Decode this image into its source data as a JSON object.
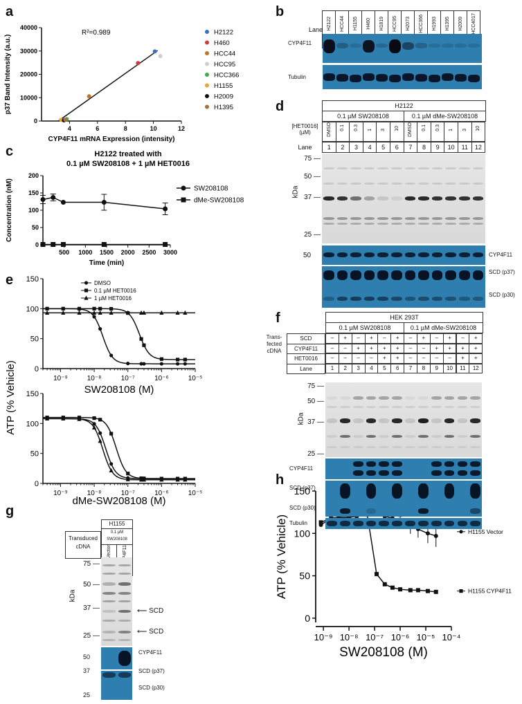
{
  "panel_letters": [
    "a",
    "b",
    "c",
    "d",
    "e",
    "f",
    "g",
    "h"
  ],
  "chart_data": [
    {
      "panel": "a",
      "type": "scatter",
      "xlabel": "CYP4F11 mRNA Expression (intensity)",
      "ylabel": "p37 Band Intensity (a.u.)",
      "annotation": "R²=0.989",
      "xlim": [
        2,
        12
      ],
      "ylim": [
        0,
        40000
      ],
      "xticks": [
        "4",
        "6",
        "8",
        "10",
        "12"
      ],
      "yticks": [
        "0",
        "10000",
        "20000",
        "30000",
        "40000"
      ],
      "points": [
        {
          "name": "H2122",
          "x": 10.1,
          "y": 29800,
          "color": "#3a6fc4"
        },
        {
          "name": "H460",
          "x": 8.9,
          "y": 24800,
          "color": "#d03a3a"
        },
        {
          "name": "HCC44",
          "x": 5.4,
          "y": 10600,
          "color": "#b8782e"
        },
        {
          "name": "HCC95",
          "x": 10.5,
          "y": 27800,
          "color": "#cfcfcf"
        },
        {
          "name": "HCC366",
          "x": 3.8,
          "y": 800,
          "color": "#3fae49"
        },
        {
          "name": "H1155",
          "x": 3.4,
          "y": 500,
          "color": "#e5a83a"
        },
        {
          "name": "H2009",
          "x": 3.6,
          "y": 300,
          "color": "#111111"
        },
        {
          "name": "H1395",
          "x": 3.7,
          "y": 600,
          "color": "#a0743a"
        }
      ],
      "fit_line": [
        [
          3.2,
          0
        ],
        [
          10.3,
          30200
        ]
      ],
      "legend_position": "right"
    },
    {
      "panel": "c",
      "type": "line",
      "title": "H2122 treated with\n0.1 µM SW208108 + 1 µM HET0016",
      "xlabel": "Time (min)",
      "ylabel": "Concentration (nM)",
      "xlim": [
        0,
        3000
      ],
      "ylim": [
        0,
        200
      ],
      "xticks": [
        "500",
        "1000",
        "1500",
        "2000",
        "2500",
        "3000"
      ],
      "yticks": [
        "0",
        "50",
        "100",
        "150",
        "200"
      ],
      "series": [
        {
          "name": "SW208108",
          "marker": "circle",
          "x": [
            0,
            240,
            480,
            1440,
            2880
          ],
          "y": [
            131,
            137,
            123,
            123,
            104
          ],
          "err": [
            12,
            10,
            0,
            23,
            17
          ]
        },
        {
          "name": "dMe-SW208108",
          "marker": "square",
          "x": [
            0,
            240,
            480,
            1440,
            2880
          ],
          "y": [
            1,
            1,
            1,
            1,
            1
          ]
        }
      ],
      "legend_position": "right"
    },
    {
      "panel": "e-top",
      "type": "line",
      "xlabel": "SW208108 (M)",
      "ylabel": "ATP (% Vehicle)",
      "xscale": "log",
      "xlim": [
        3e-10,
        1e-05
      ],
      "ylim": [
        0,
        150
      ],
      "yticks": [
        "0",
        "50",
        "100",
        "150"
      ],
      "xticks": [
        "10⁻⁹",
        "10⁻⁸",
        "10⁻⁷",
        "10⁻⁶",
        "10⁻⁵"
      ],
      "series": [
        {
          "name": "DMSO",
          "marker": "circle",
          "ic50": 1.8e-08,
          "top": 100,
          "bottom": 8
        },
        {
          "name": "0.1 µM HET0016",
          "marker": "square",
          "ic50": 2.2e-07,
          "top": 100,
          "bottom": 15
        },
        {
          "name": "1 µM HET0016",
          "marker": "triangle",
          "ic50": null,
          "top": 93,
          "bottom": 93
        }
      ],
      "legend_position": "top-left"
    },
    {
      "panel": "e-bottom",
      "type": "line",
      "xlabel": "dMe-SW208108 (M)",
      "ylabel": "ATP (% Vehicle)",
      "xscale": "log",
      "xlim": [
        3e-10,
        1e-05
      ],
      "ylim": [
        0,
        150
      ],
      "yticks": [
        "0",
        "50",
        "100",
        "150"
      ],
      "xticks": [
        "10⁻⁹",
        "10⁻⁸",
        "10⁻⁷",
        "10⁻⁶",
        "10⁻⁵"
      ],
      "series": [
        {
          "name": "DMSO",
          "marker": "circle",
          "ic50": 2.2e-08,
          "top": 108,
          "bottom": 8
        },
        {
          "name": "0.1 µM HET0016",
          "marker": "square",
          "ic50": 4.5e-08,
          "top": 110,
          "bottom": 8
        },
        {
          "name": "1 µM HET0016",
          "marker": "triangle",
          "ic50": 1.8e-08,
          "top": 108,
          "bottom": 6
        }
      ]
    },
    {
      "panel": "h",
      "type": "line",
      "xlabel": "SW208108 (M)",
      "ylabel": "ATP (% Vehicle)",
      "xscale": "log",
      "xlim": [
        5e-10,
        0.0001
      ],
      "ylim": [
        -5,
        150
      ],
      "yticks": [
        "0",
        "50",
        "100",
        "150"
      ],
      "xticks": [
        "10⁻⁹",
        "10⁻⁸",
        "10⁻⁷",
        "10⁻⁶",
        "10⁻⁵",
        "10⁻⁴"
      ],
      "series": [
        {
          "name": "H1155 Vector",
          "marker": "circle",
          "x": [
            8e-10,
            2e-09,
            4e-09,
            1e-08,
            2e-08,
            5e-08,
            1.2e-07,
            2.5e-07,
            5e-07,
            1e-06,
            2.5e-06,
            5e-06,
            1.2e-05,
            2.5e-05
          ],
          "y": [
            110,
            118,
            119,
            119,
            120,
            122,
            123,
            120,
            118,
            113,
            108,
            105,
            100,
            97
          ]
        },
        {
          "name": "H1155 CYP4F11",
          "marker": "square",
          "x": [
            8e-10,
            2e-09,
            4e-09,
            1e-08,
            2e-08,
            5e-08,
            1.2e-07,
            2.5e-07,
            5e-07,
            1e-06,
            2.5e-06,
            5e-06,
            1.2e-05,
            2.5e-05
          ],
          "y": [
            113,
            118,
            118,
            119,
            121,
            125,
            52,
            40,
            36,
            34,
            33,
            33,
            32,
            31
          ]
        }
      ],
      "legend_position": "right"
    }
  ],
  "panel_b": {
    "lane_label": "Lane",
    "cell_lines": [
      "H2122",
      "HCC44",
      "H1155",
      "H460",
      "H1819",
      "HCC95",
      "H2073",
      "HCC366",
      "H1993",
      "H1395",
      "H2009",
      "HCC4017"
    ],
    "lanes": [
      "1",
      "2",
      "3",
      "4",
      "5",
      "6",
      "7",
      "8",
      "9",
      "10",
      "11",
      "12"
    ],
    "blots": [
      "CYP4F11",
      "Tubulin"
    ],
    "band_intensity": [
      0.95,
      0.15,
      0,
      0.9,
      0.05,
      1.0,
      0.4,
      0.1,
      0,
      0,
      0,
      0
    ]
  },
  "panel_d": {
    "header": "H2122",
    "groups": [
      "0.1 µM SW208108",
      "0.1 µM dMe-SW208108"
    ],
    "row_label": "[HET0016]\n(µM)",
    "doses": [
      "DMSO",
      "0.1",
      "0.3",
      "1",
      "3",
      "10",
      "DMSO",
      "0.1",
      "0.3",
      "1",
      "3",
      "10"
    ],
    "lane_label": "Lane",
    "lanes": [
      "1",
      "2",
      "3",
      "4",
      "5",
      "6",
      "7",
      "8",
      "9",
      "10",
      "11",
      "12"
    ],
    "kda_label": "kDa",
    "markers": [
      "75",
      "50",
      "37",
      "25"
    ],
    "blot_markers": [
      "50"
    ],
    "blots": [
      "CYP4F11",
      "SCD (p37)",
      "SCD (p30)"
    ]
  },
  "panel_f": {
    "header": "HEK 293T",
    "groups": [
      "0.1 µM SW208108",
      "0.1 µM dMe-SW208108"
    ],
    "transfected_label": "Trans-\nfected\ncDNA",
    "rows": [
      {
        "label": "SCD",
        "vals": [
          "–",
          "+",
          "–",
          "+",
          "–",
          "+",
          "–",
          "+",
          "–",
          "+",
          "–",
          "+"
        ]
      },
      {
        "label": "CYP4F11",
        "vals": [
          "–",
          "–",
          "+",
          "+",
          "+",
          "+",
          "–",
          "–",
          "+",
          "+",
          "+",
          "+"
        ]
      },
      {
        "label": "HET0016",
        "vals": [
          "–",
          "–",
          "–",
          "–",
          "+",
          "+",
          "–",
          "–",
          "–",
          "–",
          "+",
          "+"
        ]
      },
      {
        "label": "Lane",
        "vals": [
          "1",
          "2",
          "3",
          "4",
          "5",
          "6",
          "7",
          "8",
          "9",
          "10",
          "11",
          "12"
        ]
      }
    ],
    "kda_label": "kDa",
    "markers": [
      "75",
      "50",
      "37",
      "25"
    ],
    "blots": [
      "CYP4F11",
      "SCD (p37)",
      "SCD (p30)",
      "Tubulin"
    ]
  },
  "panel_g": {
    "header": "H1155",
    "treatment": "0.1 µM\nSW208108",
    "transduced_label": "Transduced\ncDNA",
    "lanes": [
      "Vector",
      "CYP4F11"
    ],
    "kda_label": "kDa",
    "markers": [
      "75",
      "50",
      "37",
      "25"
    ],
    "arrows": [
      "SCD",
      "SCD"
    ],
    "blot_markers": [
      "50",
      "37",
      "25"
    ],
    "blots": [
      "CYP4F11",
      "SCD (p37)",
      "SCD (p30)"
    ]
  }
}
